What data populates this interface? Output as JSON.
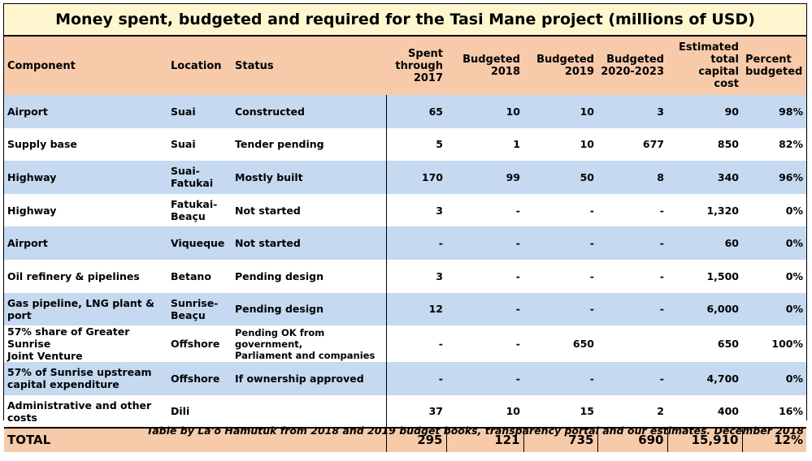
{
  "title": "Money spent, budgeted and required for the Tasi Mane project (millions of USD)",
  "columns": {
    "component": "Component",
    "location": "Location",
    "status": "Status",
    "spent": [
      "Spent",
      "through",
      "2017"
    ],
    "b2018": [
      "Budgeted",
      "2018"
    ],
    "b2019": [
      "Budgeted",
      "2019"
    ],
    "b2020": [
      "Budgeted",
      "2020-2023"
    ],
    "total_cost": [
      "Estimated",
      "total",
      "capital cost"
    ],
    "pct": [
      "Percent",
      "budgeted"
    ]
  },
  "rows": [
    {
      "component": [
        "Airport"
      ],
      "location": [
        "Suai"
      ],
      "status": [
        "Constructed"
      ],
      "spent": "65",
      "b2018": "10",
      "b2019": "10",
      "b2020": "3",
      "total": "90",
      "pct": "98%"
    },
    {
      "component": [
        "Supply base"
      ],
      "location": [
        "Suai"
      ],
      "status": [
        "Tender pending"
      ],
      "spent": "5",
      "b2018": "1",
      "b2019": "10",
      "b2020": "677",
      "total": "850",
      "pct": "82%"
    },
    {
      "component": [
        "Highway"
      ],
      "location": [
        "Suai-",
        "Fatukai"
      ],
      "status": [
        "Mostly built"
      ],
      "spent": "170",
      "b2018": "99",
      "b2019": "50",
      "b2020": "8",
      "total": "340",
      "pct": "96%"
    },
    {
      "component": [
        "Highway"
      ],
      "location": [
        "Fatukai-",
        "Beaçu"
      ],
      "status": [
        "Not started"
      ],
      "spent": "3",
      "b2018": "-",
      "b2019": "-",
      "b2020": "-",
      "total": "1,320",
      "pct": "0%"
    },
    {
      "component": [
        "Airport"
      ],
      "location": [
        "Viqueque"
      ],
      "status": [
        "Not started"
      ],
      "spent": "-",
      "b2018": "-",
      "b2019": "-",
      "b2020": "-",
      "total": "60",
      "pct": "0%"
    },
    {
      "component": [
        "Oil refinery & pipelines"
      ],
      "location": [
        "Betano"
      ],
      "status": [
        "Pending design"
      ],
      "spent": "3",
      "b2018": "-",
      "b2019": "-",
      "b2020": "-",
      "total": "1,500",
      "pct": "0%"
    },
    {
      "component": [
        "Gas pipeline, LNG plant &",
        "port"
      ],
      "location": [
        "Sunrise-",
        "Beaçu"
      ],
      "status": [
        "Pending design"
      ],
      "spent": "12",
      "b2018": "-",
      "b2019": "-",
      "b2020": "-",
      "total": "6,000",
      "pct": "0%"
    },
    {
      "component": [
        "57% share of Greater Sunrise",
        "Joint Venture"
      ],
      "location": [
        "Offshore"
      ],
      "status": [
        "Pending OK from government,",
        "Parliament and companies"
      ],
      "spent": "-",
      "b2018": "-",
      "b2019": "650",
      "b2020": "",
      "total": "650",
      "pct": "100%"
    },
    {
      "component": [
        "57% of Sunrise upstream",
        "capital expenditure"
      ],
      "location": [
        "Offshore"
      ],
      "status": [
        "If ownership approved"
      ],
      "spent": "-",
      "b2018": "-",
      "b2019": "-",
      "b2020": "-",
      "total": "4,700",
      "pct": "0%"
    },
    {
      "component": [
        "Administrative and other",
        "costs"
      ],
      "location": [
        "Dili"
      ],
      "status": [
        ""
      ],
      "spent": "37",
      "b2018": "10",
      "b2019": "15",
      "b2020": "2",
      "total": "400",
      "pct": "16%"
    }
  ],
  "total_row": {
    "label": "TOTAL",
    "spent": "295",
    "b2018": "121",
    "b2019": "735",
    "b2020": "690",
    "total": "15,910",
    "pct": "12%"
  },
  "caption": "Table by La'o Hamutuk from 2018 and 2019 budget books, transparency portal and our estimates.  December 2018",
  "colors": {
    "title_bg": "#fdf6cf",
    "header_bg": "#f7cbaa",
    "band_blue": "#c5d9f0"
  }
}
